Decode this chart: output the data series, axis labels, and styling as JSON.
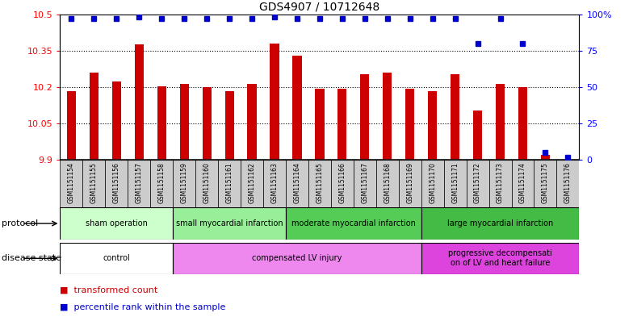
{
  "title": "GDS4907 / 10712648",
  "samples": [
    "GSM1151154",
    "GSM1151155",
    "GSM1151156",
    "GSM1151157",
    "GSM1151158",
    "GSM1151159",
    "GSM1151160",
    "GSM1151161",
    "GSM1151162",
    "GSM1151163",
    "GSM1151164",
    "GSM1151165",
    "GSM1151166",
    "GSM1151167",
    "GSM1151168",
    "GSM1151169",
    "GSM1151170",
    "GSM1151171",
    "GSM1151172",
    "GSM1151173",
    "GSM1151174",
    "GSM1151175",
    "GSM1151176"
  ],
  "bar_values": [
    10.185,
    10.26,
    10.225,
    10.375,
    10.205,
    10.215,
    10.2,
    10.185,
    10.215,
    10.38,
    10.33,
    10.195,
    10.195,
    10.255,
    10.26,
    10.195,
    10.185,
    10.255,
    10.105,
    10.215,
    10.2,
    9.92,
    9.9
  ],
  "percentile_values": [
    97,
    97,
    97,
    98,
    97,
    97,
    97,
    97,
    97,
    98,
    97,
    97,
    97,
    97,
    97,
    97,
    97,
    97,
    80,
    97,
    80,
    5,
    2
  ],
  "ylim_left": [
    9.9,
    10.5
  ],
  "ylim_right": [
    0,
    100
  ],
  "yticks_left": [
    9.9,
    10.05,
    10.2,
    10.35,
    10.5
  ],
  "yticks_right": [
    0,
    25,
    50,
    75,
    100
  ],
  "bar_color": "#cc0000",
  "dot_color": "#0000cc",
  "protocol_groups": [
    {
      "label": "sham operation",
      "start": 0,
      "end": 5,
      "color": "#ccffcc"
    },
    {
      "label": "small myocardial infarction",
      "start": 5,
      "end": 10,
      "color": "#99ee99"
    },
    {
      "label": "moderate myocardial infarction",
      "start": 10,
      "end": 16,
      "color": "#55cc55"
    },
    {
      "label": "large myocardial infarction",
      "start": 16,
      "end": 23,
      "color": "#44bb44"
    }
  ],
  "disease_groups": [
    {
      "label": "control",
      "start": 0,
      "end": 5,
      "color": "#ffffff"
    },
    {
      "label": "compensated LV injury",
      "start": 5,
      "end": 16,
      "color": "#ee88ee"
    },
    {
      "label": "progressive decompensati\non of LV and heart failure",
      "start": 16,
      "end": 23,
      "color": "#dd44dd"
    }
  ],
  "sample_bg": "#cccccc"
}
